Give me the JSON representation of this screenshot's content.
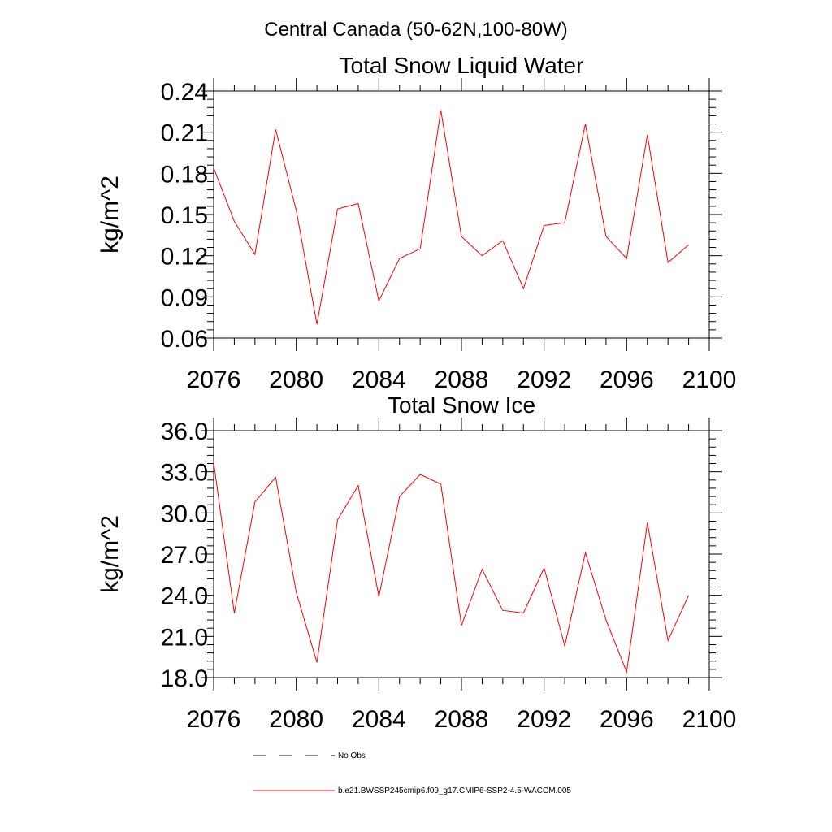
{
  "figure": {
    "title": "Central Canada (50-62N,100-80W)"
  },
  "legend": {
    "placement": "bottom",
    "entries": [
      {
        "label": "No Obs",
        "color": "#000080",
        "style": "dashed"
      },
      {
        "label": "b.e21.BWSSP245cmip6.f09_g17.CMIP6-SSP2-4.5-WACCM.005",
        "color": "#ff0000",
        "style": "solid"
      }
    ]
  },
  "chart_data": [
    {
      "type": "line",
      "title": "Total Snow Liquid Water",
      "xlabel": "",
      "ylabel": "kg/m^2",
      "xlim": [
        2076,
        2100
      ],
      "ylim": [
        0.06,
        0.24
      ],
      "xticks": [
        2076,
        2080,
        2084,
        2088,
        2092,
        2096,
        2100
      ],
      "xtick_labels": [
        "2076",
        "2080",
        "2084",
        "2088",
        "2092",
        "2096",
        "2100"
      ],
      "yticks": [
        0.06,
        0.09,
        0.12,
        0.15,
        0.18,
        0.21,
        0.24
      ],
      "ytick_labels": [
        "0.06",
        "0.09",
        "0.12",
        "0.15",
        "0.18",
        "0.21",
        "0.24"
      ],
      "grid": false,
      "series": [
        {
          "name": "b.e21.BWSSP245cmip6.f09_g17.CMIP6-SSP2-4.5-WACCM.005",
          "color": "#ff0000",
          "x": [
            2076,
            2077,
            2078,
            2079,
            2080,
            2081,
            2082,
            2083,
            2084,
            2085,
            2086,
            2087,
            2088,
            2089,
            2090,
            2091,
            2092,
            2093,
            2094,
            2095,
            2096,
            2097,
            2098,
            2099
          ],
          "y": [
            0.184,
            0.145,
            0.121,
            0.212,
            0.153,
            0.07,
            0.154,
            0.158,
            0.087,
            0.118,
            0.125,
            0.226,
            0.134,
            0.12,
            0.131,
            0.096,
            0.142,
            0.144,
            0.216,
            0.134,
            0.118,
            0.208,
            0.115,
            0.128
          ]
        }
      ]
    },
    {
      "type": "line",
      "title": "Total Snow Ice",
      "xlabel": "",
      "ylabel": "kg/m^2",
      "xlim": [
        2076,
        2100
      ],
      "ylim": [
        18.0,
        36.0
      ],
      "xticks": [
        2076,
        2080,
        2084,
        2088,
        2092,
        2096,
        2100
      ],
      "xtick_labels": [
        "2076",
        "2080",
        "2084",
        "2088",
        "2092",
        "2096",
        "2100"
      ],
      "yticks": [
        18.0,
        21.0,
        24.0,
        27.0,
        30.0,
        33.0,
        36.0
      ],
      "ytick_labels": [
        "18.0",
        "21.0",
        "24.0",
        "27.0",
        "30.0",
        "33.0",
        "36.0"
      ],
      "grid": false,
      "series": [
        {
          "name": "b.e21.BWSSP245cmip6.f09_g17.CMIP6-SSP2-4.5-WACCM.005",
          "color": "#ff0000",
          "x": [
            2076,
            2077,
            2078,
            2079,
            2080,
            2081,
            2082,
            2083,
            2084,
            2085,
            2086,
            2087,
            2088,
            2089,
            2090,
            2091,
            2092,
            2093,
            2094,
            2095,
            2096,
            2097,
            2098,
            2099
          ],
          "y": [
            33.7,
            22.7,
            30.8,
            32.6,
            24.2,
            19.1,
            29.5,
            32.0,
            23.9,
            31.2,
            32.8,
            32.1,
            21.8,
            25.9,
            22.9,
            22.7,
            26.0,
            20.3,
            27.1,
            22.2,
            18.4,
            29.3,
            20.7,
            24.0
          ]
        }
      ]
    }
  ]
}
